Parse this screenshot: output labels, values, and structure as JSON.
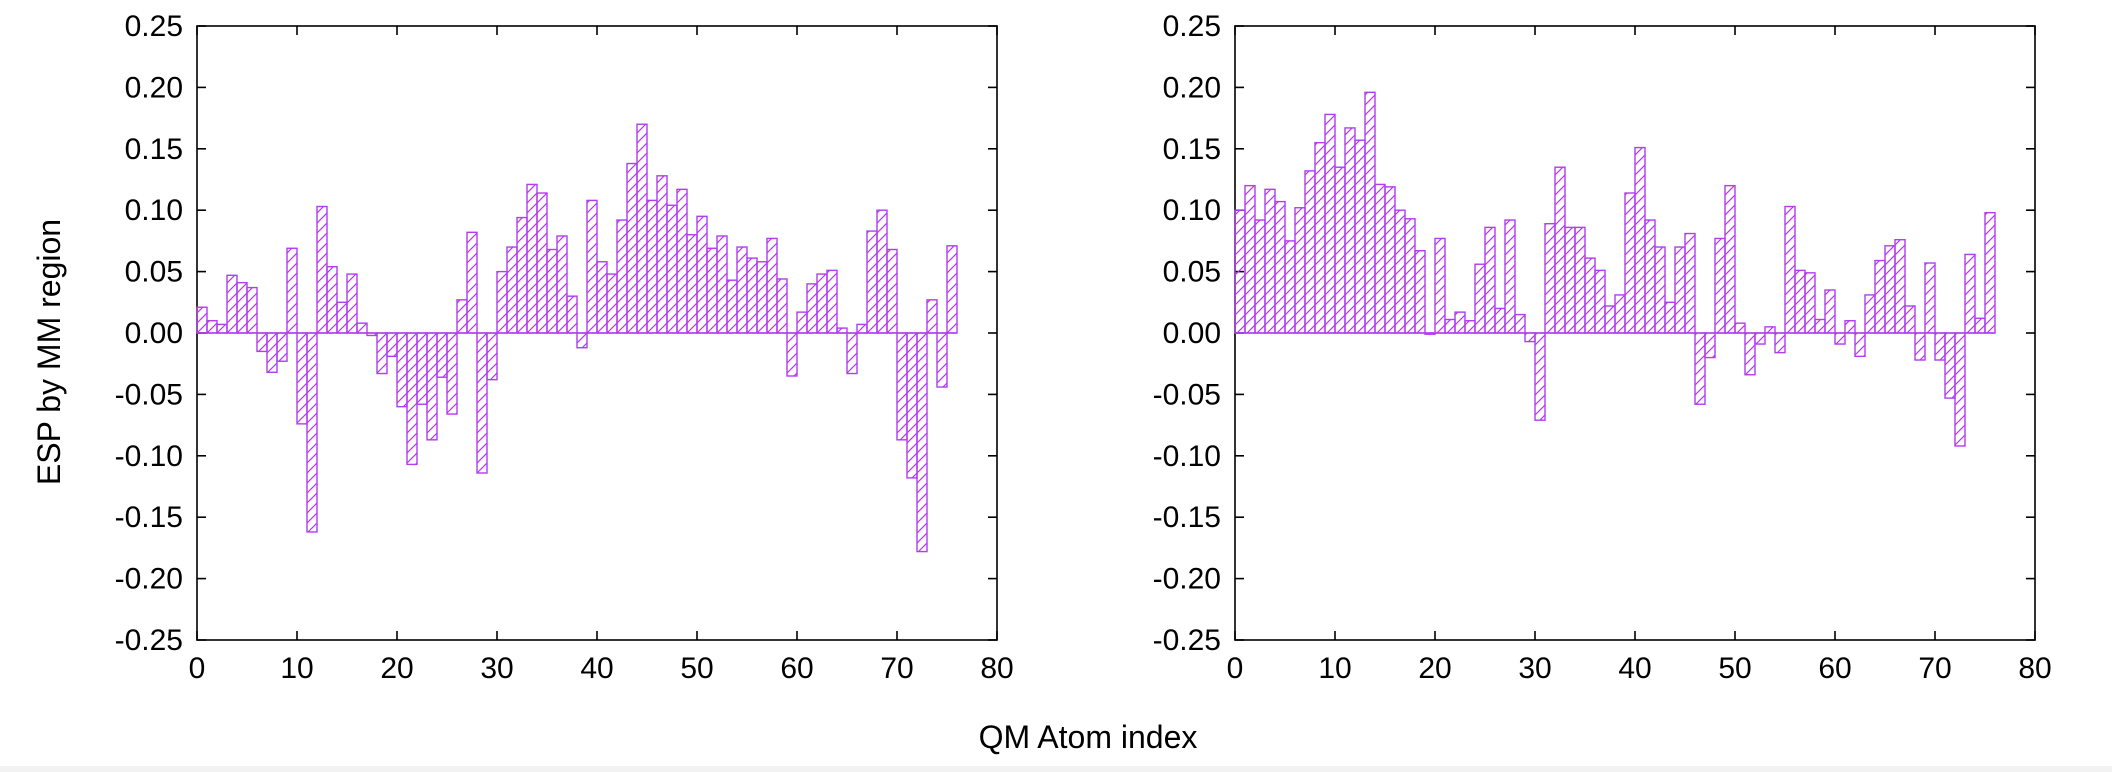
{
  "figure": {
    "xlabel": "QM Atom index",
    "ylabel": "ESP by MM region",
    "bar_color": "#b23cf0"
  },
  "chart_data": [
    {
      "type": "bar",
      "xlabel": "QM Atom index",
      "ylabel": "ESP by MM region",
      "xlim": [
        0,
        80
      ],
      "ylim": [
        -0.25,
        0.25
      ],
      "xticks": [
        "0",
        "10",
        "20",
        "30",
        "40",
        "50",
        "60",
        "70",
        "80"
      ],
      "yticks": [
        "-0.25",
        "-0.20",
        "-0.15",
        "-0.10",
        "-0.05",
        "0.00",
        "0.05",
        "0.10",
        "0.15",
        "0.20",
        "0.25"
      ],
      "fill": "hatched",
      "x": [
        0,
        1,
        2,
        3,
        4,
        5,
        6,
        7,
        8,
        9,
        10,
        11,
        12,
        13,
        14,
        15,
        16,
        17,
        18,
        19,
        20,
        21,
        22,
        23,
        24,
        25,
        26,
        27,
        28,
        29,
        30,
        31,
        32,
        33,
        34,
        35,
        36,
        37,
        38,
        39,
        40,
        41,
        42,
        43,
        44,
        45,
        46,
        47,
        48,
        49,
        50,
        51,
        52,
        53,
        54,
        55,
        56,
        57,
        58,
        59,
        60,
        61,
        62,
        63,
        64,
        65,
        66,
        67,
        68,
        69,
        70,
        71,
        72,
        73,
        74,
        75
      ],
      "values": [
        0.021,
        0.01,
        0.007,
        0.047,
        0.041,
        0.037,
        -0.015,
        -0.032,
        -0.023,
        0.069,
        -0.074,
        -0.162,
        0.103,
        0.054,
        0.025,
        0.048,
        0.008,
        -0.002,
        -0.033,
        -0.019,
        -0.06,
        -0.107,
        -0.058,
        -0.087,
        -0.036,
        -0.066,
        0.027,
        0.082,
        -0.114,
        -0.038,
        0.05,
        0.07,
        0.094,
        0.121,
        0.114,
        0.068,
        0.079,
        0.03,
        -0.012,
        0.108,
        0.058,
        0.048,
        0.092,
        0.138,
        0.17,
        0.108,
        0.128,
        0.104,
        0.117,
        0.08,
        0.095,
        0.069,
        0.079,
        0.043,
        0.07,
        0.061,
        0.058,
        0.077,
        0.044,
        -0.035,
        0.017,
        0.04,
        0.048,
        0.051,
        0.004,
        -0.033,
        0.007,
        0.083,
        0.1,
        0.068,
        -0.087,
        -0.118,
        -0.178,
        0.027,
        -0.044,
        0.071
      ]
    },
    {
      "type": "bar",
      "xlabel": "QM Atom index",
      "ylabel": "ESP by MM region",
      "xlim": [
        0,
        80
      ],
      "ylim": [
        -0.25,
        0.25
      ],
      "xticks": [
        "0",
        "10",
        "20",
        "30",
        "40",
        "50",
        "60",
        "70",
        "80"
      ],
      "yticks": [
        "-0.25",
        "-0.20",
        "-0.15",
        "-0.10",
        "-0.05",
        "0.00",
        "0.05",
        "0.10",
        "0.15",
        "0.20",
        "0.25"
      ],
      "fill": "hatched",
      "x": [
        0,
        1,
        2,
        3,
        4,
        5,
        6,
        7,
        8,
        9,
        10,
        11,
        12,
        13,
        14,
        15,
        16,
        17,
        18,
        19,
        20,
        21,
        22,
        23,
        24,
        25,
        26,
        27,
        28,
        29,
        30,
        31,
        32,
        33,
        34,
        35,
        36,
        37,
        38,
        39,
        40,
        41,
        42,
        43,
        44,
        45,
        46,
        47,
        48,
        49,
        50,
        51,
        52,
        53,
        54,
        55,
        56,
        57,
        58,
        59,
        60,
        61,
        62,
        63,
        64,
        65,
        66,
        67,
        68,
        69,
        70,
        71,
        72,
        73,
        74,
        75
      ],
      "values": [
        0.1,
        0.12,
        0.092,
        0.117,
        0.107,
        0.075,
        0.102,
        0.132,
        0.155,
        0.178,
        0.135,
        0.167,
        0.157,
        0.196,
        0.121,
        0.119,
        0.1,
        0.093,
        0.067,
        -0.001,
        0.077,
        0.011,
        0.017,
        0.01,
        0.056,
        0.086,
        0.02,
        0.092,
        0.015,
        -0.007,
        -0.071,
        0.089,
        0.135,
        0.086,
        0.086,
        0.061,
        0.051,
        0.022,
        0.031,
        0.114,
        0.151,
        0.092,
        0.07,
        0.025,
        0.07,
        0.081,
        -0.058,
        -0.02,
        0.077,
        0.12,
        0.008,
        -0.034,
        -0.009,
        0.005,
        -0.016,
        0.103,
        0.051,
        0.049,
        0.011,
        0.035,
        -0.009,
        0.01,
        -0.019,
        0.031,
        0.059,
        0.071,
        0.076,
        0.022,
        -0.022,
        0.057,
        -0.022,
        -0.053,
        -0.092,
        0.064,
        0.012,
        0.098
      ]
    }
  ]
}
